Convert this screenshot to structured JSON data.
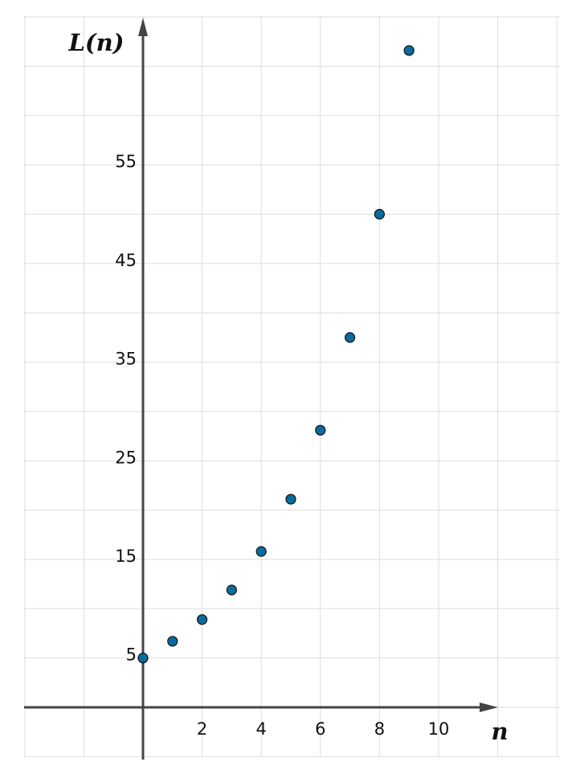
{
  "chart_data": {
    "type": "scatter",
    "title": "",
    "xlabel": "n",
    "ylabel": "L(n)",
    "xlim": [
      -4,
      14
    ],
    "ylim": [
      -5,
      70
    ],
    "x_ticks": [
      2,
      4,
      6,
      8,
      10
    ],
    "y_ticks": [
      5,
      15,
      25,
      35,
      45,
      55
    ],
    "grid": true,
    "colors": {
      "point_fill": "#0a6b9e",
      "axis": "#444444",
      "grid": "#dedede"
    },
    "points": [
      {
        "x": 0,
        "y": 5
      },
      {
        "x": 1,
        "y": 6.7
      },
      {
        "x": 2,
        "y": 8.9
      },
      {
        "x": 3,
        "y": 11.9
      },
      {
        "x": 4,
        "y": 15.8
      },
      {
        "x": 5,
        "y": 21.1
      },
      {
        "x": 6,
        "y": 28.1
      },
      {
        "x": 7,
        "y": 37.5
      },
      {
        "x": 8,
        "y": 50
      },
      {
        "x": 9,
        "y": 66.6
      }
    ]
  }
}
